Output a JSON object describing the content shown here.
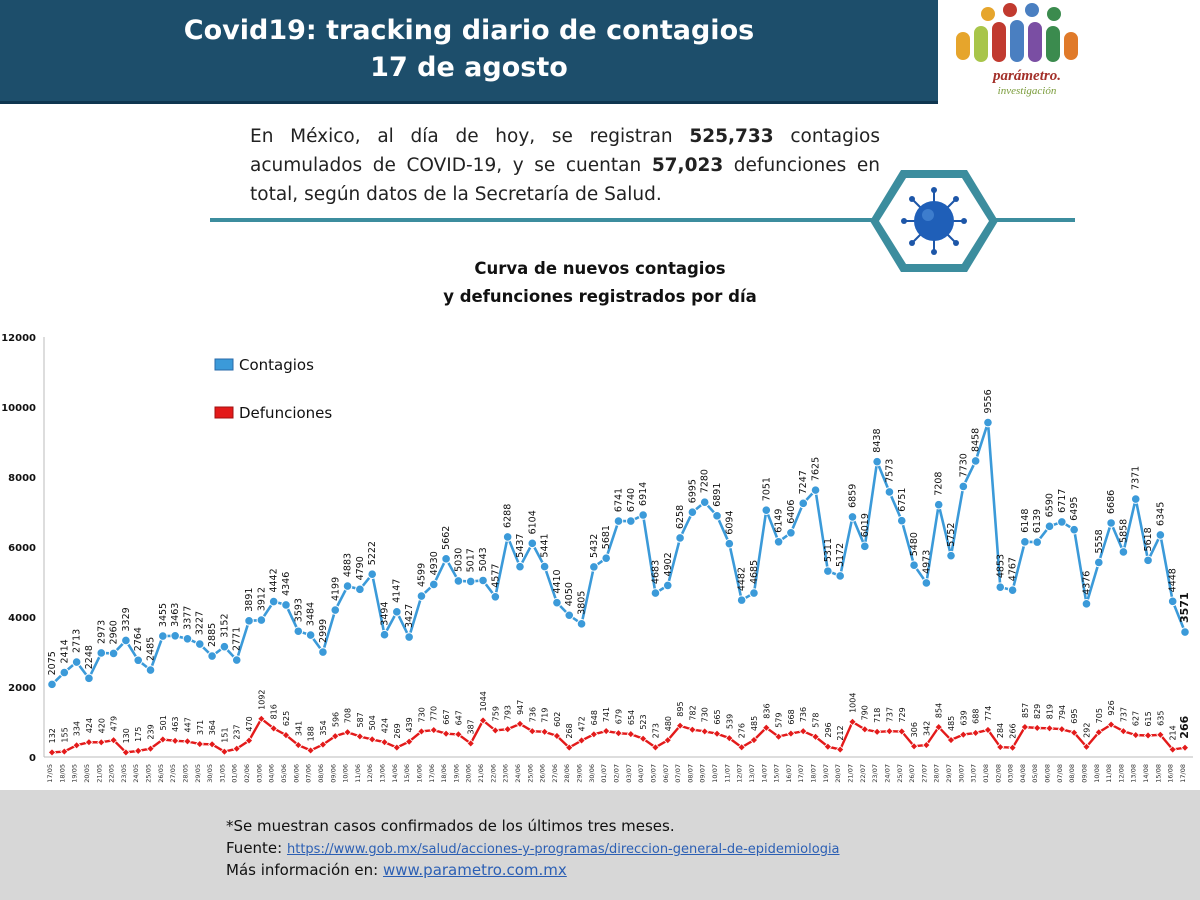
{
  "header": {
    "title_line1": "Covid19: tracking diario de contagios",
    "title_line2": "17 de agosto"
  },
  "logo": {
    "name": "parámetro.",
    "subtitle": "investigación"
  },
  "summary": {
    "p1": "En México, al día de hoy, se registran ",
    "contagios_total": "525,733",
    "p2": " contagios acumulados de COVID-19, y se cuentan ",
    "defunciones_total": "57,023",
    "p3": " defunciones en total, según datos de la Secretaría de Salud."
  },
  "chart_title": {
    "line1": "Curva de nuevos contagios",
    "line2": "y defunciones registrados por día"
  },
  "legend": {
    "contagios": "Contagios",
    "defunciones": "Defunciones"
  },
  "colors": {
    "contagios": "#3b9ad9",
    "defunciones": "#e31a1a",
    "header": "#1d4e6b",
    "accent": "#3c8d9e"
  },
  "chart_data": {
    "type": "line",
    "ylim": [
      0,
      12000
    ],
    "yticks": [
      0,
      2000,
      4000,
      6000,
      8000,
      10000,
      12000
    ],
    "grid": false,
    "legend_position": "top-left",
    "categories": [
      "17/05",
      "18/05",
      "19/05",
      "20/05",
      "21/05",
      "22/05",
      "23/05",
      "24/05",
      "25/05",
      "26/05",
      "27/05",
      "28/05",
      "29/05",
      "30/05",
      "31/05",
      "01/06",
      "02/06",
      "03/06",
      "04/06",
      "05/06",
      "06/06",
      "07/06",
      "08/06",
      "09/06",
      "10/06",
      "11/06",
      "12/06",
      "13/06",
      "14/06",
      "15/06",
      "16/06",
      "17/06",
      "18/06",
      "19/06",
      "20/06",
      "21/06",
      "22/06",
      "23/06",
      "24/06",
      "25/06",
      "26/06",
      "27/06",
      "28/06",
      "29/06",
      "30/06",
      "01/07",
      "02/07",
      "03/07",
      "04/07",
      "05/07",
      "06/07",
      "07/07",
      "08/07",
      "09/07",
      "10/07",
      "11/07",
      "12/07",
      "13/07",
      "14/07",
      "15/07",
      "16/07",
      "17/07",
      "18/07",
      "19/07",
      "20/07",
      "21/07",
      "22/07",
      "23/07",
      "24/07",
      "25/07",
      "26/07",
      "27/07",
      "28/07",
      "29/07",
      "30/07",
      "31/07",
      "01/08",
      "02/08",
      "03/08",
      "04/08",
      "05/08",
      "06/08",
      "07/08",
      "08/08",
      "09/08",
      "10/08",
      "11/08",
      "12/08",
      "13/08",
      "14/08",
      "15/08",
      "16/08",
      "17/08"
    ],
    "series": [
      {
        "name": "Contagios",
        "labels": [
          "2075",
          "2414",
          "2713",
          "2248",
          "2973",
          "2960",
          "3329",
          "2764",
          "2485",
          "3455",
          "3463",
          "3377",
          "3227",
          "2885",
          "3152",
          "2771",
          "3891",
          "3912",
          "4442",
          "4346",
          "3593",
          "3484",
          "2999",
          "4199",
          "4883",
          "4790",
          "5222",
          "3494",
          "4147",
          "3427",
          "4599",
          "4930",
          "5662",
          "5030",
          "5017",
          "5043",
          "4577",
          "6288",
          "5437",
          "6104",
          "5441",
          "4410",
          "4050",
          "3805",
          "5432",
          "5681",
          "6741",
          "6740",
          "6914",
          "4683",
          "4902",
          "6258",
          "6995",
          "7280",
          "6891",
          "6094",
          "4482",
          "4685",
          "7051",
          "6149",
          "6406",
          "7247",
          "7625",
          "5311",
          "5172",
          "6859",
          "6019",
          "8438",
          "7573",
          "6751",
          "5480",
          "4973",
          "7208",
          "5752",
          "7730",
          "8458",
          "9556",
          "4853",
          "4767",
          "6148",
          "6139",
          "6590",
          "6717",
          "6495",
          "4376",
          "5558",
          "6686",
          "5858",
          "7371",
          "5618",
          "6345",
          "4448",
          "3571"
        ],
        "values": [
          2075,
          2414,
          2713,
          2248,
          2973,
          2960,
          3329,
          2764,
          2485,
          3455,
          3463,
          3377,
          3227,
          2885,
          3152,
          2771,
          3891,
          3912,
          4442,
          4346,
          3593,
          3484,
          2999,
          4199,
          4883,
          4790,
          5222,
          3494,
          4147,
          3427,
          4599,
          4930,
          5662,
          5030,
          5017,
          5043,
          4577,
          6288,
          5437,
          6104,
          5441,
          4410,
          4050,
          3805,
          5432,
          5681,
          6741,
          6740,
          6914,
          4683,
          4902,
          6258,
          6995,
          7280,
          6891,
          6094,
          4482,
          4685,
          7051,
          6149,
          6406,
          7247,
          7625,
          5311,
          5172,
          6859,
          6019,
          8438,
          7573,
          6751,
          5480,
          4973,
          7208,
          5752,
          7730,
          8458,
          9556,
          4853,
          4767,
          6148,
          6139,
          6590,
          6717,
          6495,
          4376,
          5558,
          6686,
          5858,
          7371,
          5618,
          6345,
          4448,
          3571
        ]
      },
      {
        "name": "Defunciones",
        "labels": [
          "132",
          "155",
          "334",
          "424",
          "420",
          "479",
          "130",
          "175",
          "239",
          "501",
          "463",
          "447",
          "371",
          "364",
          "151",
          "237",
          "470",
          "1092",
          "816",
          "625",
          "341",
          "188",
          "354",
          "596",
          "708",
          "587",
          "504",
          "424",
          "269",
          "439",
          "730",
          "770",
          "667",
          "647",
          "387",
          "1044",
          "759",
          "793",
          "947",
          "736",
          "719",
          "602",
          "268",
          "472",
          "648",
          "741",
          "679",
          "654",
          "523",
          "273",
          "480",
          "895",
          "782",
          "730",
          "665",
          "539",
          "276",
          "485",
          "836",
          "579",
          "668",
          "736",
          "578",
          "296",
          "212",
          "1004",
          "790",
          "718",
          "737",
          "729",
          "306",
          "342",
          "854",
          "485",
          "639",
          "688",
          "774",
          "284",
          "266",
          "857",
          "829",
          "819",
          "794",
          "695",
          "292",
          "705",
          "926",
          "737",
          "627",
          "615",
          "635",
          "214",
          "266"
        ],
        "values": [
          132,
          155,
          334,
          424,
          420,
          479,
          130,
          175,
          239,
          501,
          463,
          447,
          371,
          364,
          151,
          237,
          470,
          1092,
          816,
          625,
          341,
          188,
          354,
          596,
          708,
          587,
          504,
          424,
          269,
          439,
          730,
          770,
          667,
          647,
          387,
          1044,
          759,
          793,
          947,
          736,
          719,
          602,
          268,
          472,
          648,
          741,
          679,
          654,
          523,
          273,
          480,
          895,
          782,
          730,
          665,
          539,
          276,
          485,
          836,
          579,
          668,
          736,
          578,
          296,
          212,
          1004,
          790,
          718,
          737,
          729,
          306,
          342,
          854,
          485,
          639,
          688,
          774,
          284,
          266,
          857,
          829,
          819,
          794,
          695,
          292,
          705,
          926,
          737,
          627,
          615,
          635,
          214,
          266
        ]
      }
    ]
  },
  "footer": {
    "note": "*Se muestran casos confirmados de los últimos tres meses.",
    "source_label": "Fuente: ",
    "source_url": "https://www.gob.mx/salud/acciones-y-programas/direccion-general-de-epidemiologia",
    "more_label": "Más información en: ",
    "more_url": "www.parametro.com.mx"
  }
}
